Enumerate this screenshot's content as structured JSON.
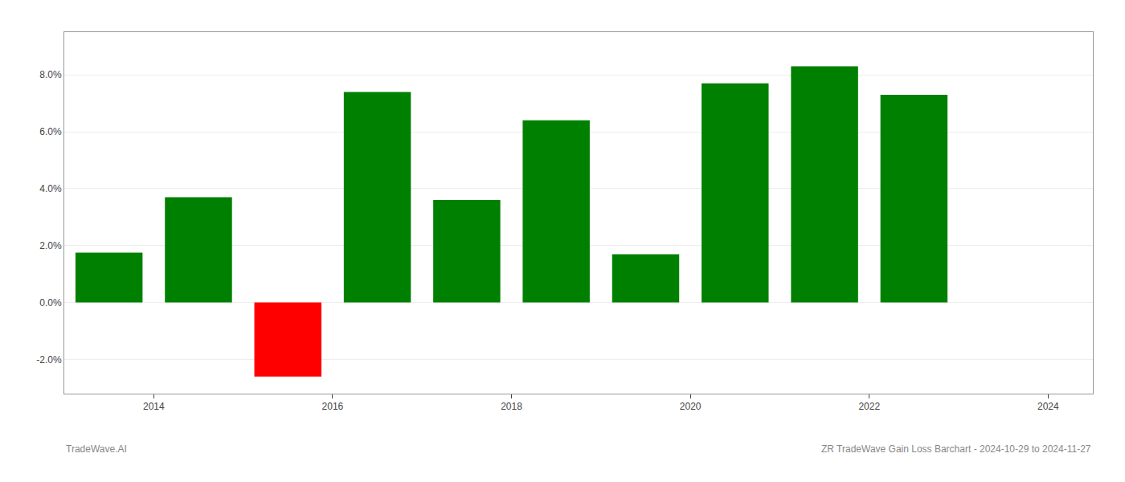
{
  "chart_data": {
    "type": "bar",
    "x": [
      2013.5,
      2014.5,
      2015.5,
      2016.5,
      2017.5,
      2018.5,
      2019.5,
      2020.5,
      2021.5,
      2022.5
    ],
    "values": [
      1.75,
      3.7,
      -2.6,
      7.4,
      3.6,
      6.4,
      1.7,
      7.7,
      8.3,
      7.3
    ],
    "colors": [
      "#008000",
      "#008000",
      "#ff0000",
      "#008000",
      "#008000",
      "#008000",
      "#008000",
      "#008000",
      "#008000",
      "#008000"
    ],
    "xlim": [
      2013.0,
      2024.5
    ],
    "xticks": [
      2014,
      2016,
      2018,
      2020,
      2022,
      2024
    ],
    "ylim": [
      -3.2,
      9.5
    ],
    "yticks": [
      {
        "value": -2.0,
        "label": "-2.0%"
      },
      {
        "value": 0.0,
        "label": "0.0%"
      },
      {
        "value": 2.0,
        "label": "2.0%"
      },
      {
        "value": 4.0,
        "label": "4.0%"
      },
      {
        "value": 6.0,
        "label": "6.0%"
      },
      {
        "value": 8.0,
        "label": "8.0%"
      }
    ],
    "grid": "y",
    "annotations": [
      "TradeWave.AI",
      "ZR TradeWave Gain Loss Barchart - 2024-10-29 to 2024-11-27"
    ]
  }
}
